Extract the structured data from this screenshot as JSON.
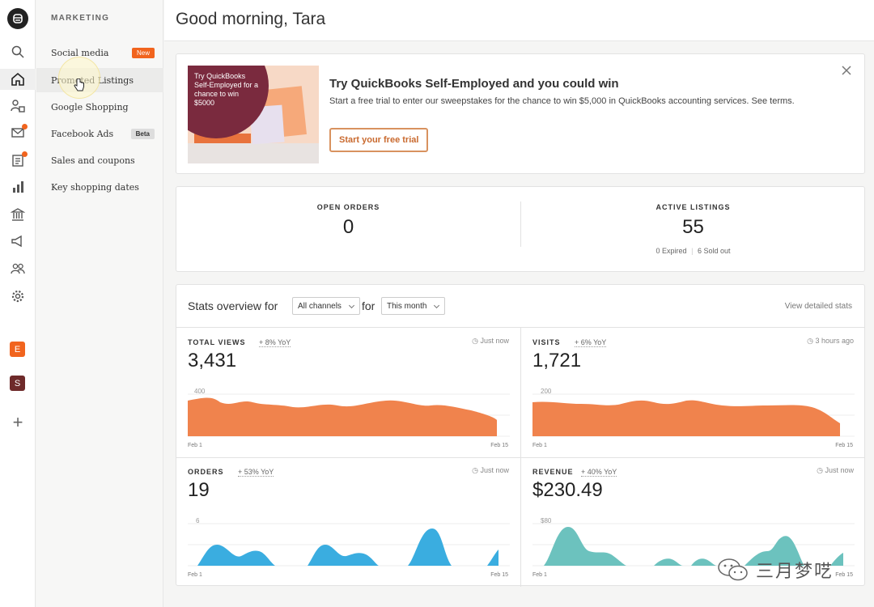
{
  "header": {
    "greeting": "Good morning, Tara"
  },
  "rail": {
    "items": [
      "search-icon",
      "home-icon",
      "listings-icon",
      "messages-icon",
      "orders-icon",
      "stats-icon",
      "finances-icon",
      "marketing-icon",
      "community-icon",
      "settings-icon"
    ],
    "shops": [
      {
        "letter": "E",
        "color": "#f1641e"
      },
      {
        "letter": "S",
        "color": "#6e2a2a"
      }
    ],
    "add_label": "+"
  },
  "subnav": {
    "heading": "MARKETING",
    "items": [
      {
        "label": "Social media",
        "badge": "New"
      },
      {
        "label": "Promoted Listings"
      },
      {
        "label": "Google Shopping"
      },
      {
        "label": "Facebook Ads",
        "badge": "Beta"
      },
      {
        "label": "Sales and coupons"
      },
      {
        "label": "Key shopping dates"
      }
    ]
  },
  "promo": {
    "image_text": "Try QuickBooks Self-Employed for a chance to win $5000",
    "title": "Try QuickBooks Self-Employed and you could win",
    "body": "Start a free trial to enter our sweepstakes for the chance to win $5,000 in QuickBooks accounting services. See terms.",
    "button": "Start your free trial"
  },
  "summary": {
    "open_orders": {
      "label": "OPEN ORDERS",
      "value": "0"
    },
    "active_listings": {
      "label": "ACTIVE LISTINGS",
      "value": "55",
      "expired": "0 Expired",
      "sold_out": "6 Sold out"
    }
  },
  "stats": {
    "title": "Stats overview for",
    "channel": "All channels",
    "for_label": "for",
    "period": "This month",
    "view_link": "View detailed stats",
    "cells": [
      {
        "label": "TOTAL VIEWS",
        "yoy": "+ 8% YoY",
        "time": "Just now",
        "value": "3,431",
        "ymax_label": "400",
        "x_start": "Feb 1",
        "x_end": "Feb 15",
        "color": "#f0834d"
      },
      {
        "label": "VISITS",
        "yoy": "+ 6% YoY",
        "time": "3 hours ago",
        "value": "1,721",
        "ymax_label": "200",
        "x_start": "Feb 1",
        "x_end": "Feb 15",
        "color": "#f0834d"
      },
      {
        "label": "ORDERS",
        "yoy": "+ 53% YoY",
        "time": "Just now",
        "value": "19",
        "ymax_label": "6",
        "x_start": "Feb 1",
        "x_end": "Feb 15",
        "color": "#3aade0"
      },
      {
        "label": "REVENUE",
        "yoy": "+ 40% YoY",
        "time": "Just now",
        "value": "$230.49",
        "ymax_label": "$80",
        "x_start": "Feb 1",
        "x_end": "Feb 15",
        "color": "#6cc2be"
      }
    ]
  },
  "watermark": {
    "text": "三月梦呓"
  }
}
